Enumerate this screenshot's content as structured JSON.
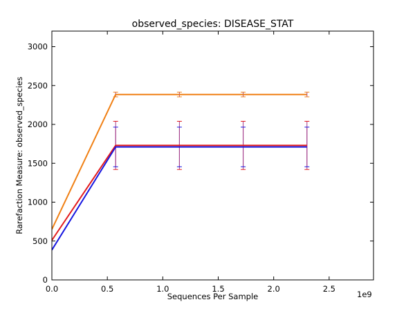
{
  "chart_data": {
    "type": "line",
    "title": "observed_species: DISEASE_STAT",
    "xlabel": "Sequences Per Sample",
    "ylabel": "Rarefaction Measure: observed_species",
    "x_offset_label": "1e9",
    "xlim": [
      0,
      2.9
    ],
    "ylim": [
      0,
      3200
    ],
    "x_ticks": [
      0.0,
      0.5,
      1.0,
      1.5,
      2.0,
      2.5
    ],
    "x_tick_labels": [
      "0.0",
      "0.5",
      "1.0",
      "1.5",
      "2.0",
      "2.5"
    ],
    "y_ticks": [
      0,
      500,
      1000,
      1500,
      2000,
      2500,
      3000
    ],
    "y_tick_labels": [
      "0",
      "500",
      "1000",
      "1500",
      "2000",
      "2500",
      "3000"
    ],
    "x": [
      0.0,
      0.575,
      1.15,
      1.725,
      2.3
    ],
    "series": [
      {
        "color": "#f07f13",
        "values": [
          650,
          2385,
          2385,
          2385,
          2385
        ],
        "errors": [
          0,
          30,
          30,
          30,
          30
        ]
      },
      {
        "color": "#e31a1c",
        "values": [
          510,
          1730,
          1730,
          1730,
          1730
        ],
        "errors": [
          0,
          310,
          310,
          310,
          310
        ]
      },
      {
        "color": "#1515e0",
        "values": [
          385,
          1710,
          1710,
          1710,
          1710
        ],
        "errors": [
          0,
          255,
          255,
          255,
          255
        ]
      }
    ],
    "errorbar_color": "#a33a8a",
    "grid": false
  }
}
